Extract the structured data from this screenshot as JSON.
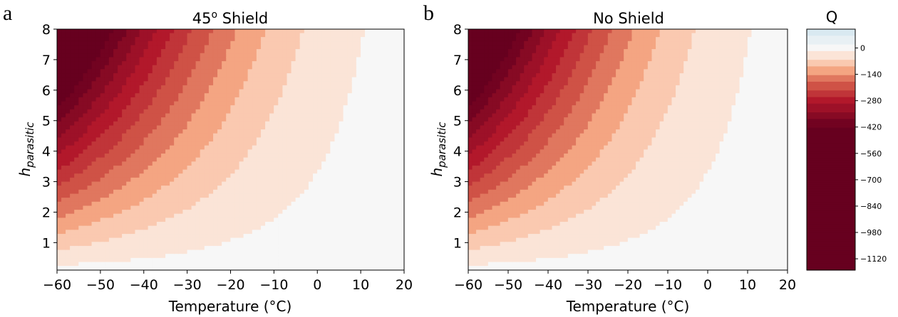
{
  "panel_labels": [
    "a",
    "b"
  ],
  "chart_data": [
    {
      "type": "heatmap",
      "title": "45° Shield",
      "title_base": "45",
      "title_sup": "o",
      "title_rest": " Shield",
      "xlabel": "Temperature (°C)",
      "ylabel": "h",
      "ylabel_sub": "parasitic",
      "xlim": [
        -60,
        20
      ],
      "ylim": [
        0.1,
        8
      ],
      "x_ticks": [
        -60,
        -50,
        -40,
        -30,
        -20,
        -10,
        0,
        10,
        20
      ],
      "x_tick_labels": [
        "−60",
        "−50",
        "−40",
        "−30",
        "−20",
        "−10",
        "0",
        "10",
        "20"
      ],
      "y_ticks": [
        1,
        2,
        3,
        4,
        5,
        6,
        7,
        8
      ],
      "y_tick_labels": [
        "1",
        "2",
        "3",
        "4",
        "5",
        "6",
        "7",
        "8"
      ],
      "colormap": "RdBu (reversed, filled contours)",
      "value_range": [
        -1120,
        100
      ],
      "sample_values": [
        {
          "temperature": -60,
          "h": 8,
          "Q": -1120
        },
        {
          "temperature": -40,
          "h": 4,
          "Q": -420
        },
        {
          "temperature": -20,
          "h": 2,
          "Q": -140
        },
        {
          "temperature": 0,
          "h": 4,
          "Q": 0
        },
        {
          "temperature": 20,
          "h": 8,
          "Q": 60
        }
      ]
    },
    {
      "type": "heatmap",
      "title": "No Shield",
      "xlabel": "Temperature (°C)",
      "ylabel": "h",
      "ylabel_sub": "parasitic",
      "xlim": [
        -60,
        20
      ],
      "ylim": [
        0.1,
        8
      ],
      "x_ticks": [
        -60,
        -50,
        -40,
        -30,
        -20,
        -10,
        0,
        10,
        20
      ],
      "x_tick_labels": [
        "−60",
        "−50",
        "−40",
        "−30",
        "−20",
        "−10",
        "0",
        "10",
        "20"
      ],
      "y_ticks": [
        1,
        2,
        3,
        4,
        5,
        6,
        7,
        8
      ],
      "y_tick_labels": [
        "1",
        "2",
        "3",
        "4",
        "5",
        "6",
        "7",
        "8"
      ],
      "colormap": "RdBu (reversed, filled contours)",
      "value_range": [
        -1120,
        100
      ],
      "sample_values": [
        {
          "temperature": -60,
          "h": 8,
          "Q": -1120
        },
        {
          "temperature": -40,
          "h": 4,
          "Q": -420
        },
        {
          "temperature": -20,
          "h": 2,
          "Q": -140
        },
        {
          "temperature": 0,
          "h": 4,
          "Q": 0
        },
        {
          "temperature": 20,
          "h": 8,
          "Q": 60
        }
      ]
    }
  ],
  "colorbar": {
    "title": "Q",
    "ticks": [
      0,
      -140,
      -280,
      -420,
      -560,
      -700,
      -840,
      -980,
      -1120
    ],
    "tick_labels": [
      "0",
      "−140",
      "−280",
      "−420",
      "−560",
      "−700",
      "−840",
      "−980",
      "−1120"
    ],
    "range": [
      -1180,
      100
    ],
    "colors": {
      "darkest": "#67001f",
      "dark_red": "#b2182b",
      "red": "#d6604d",
      "salmon": "#f4a582",
      "peach": "#fddbc7",
      "white": "#f7f7f7",
      "light_blue": "#d1e5f0"
    }
  }
}
